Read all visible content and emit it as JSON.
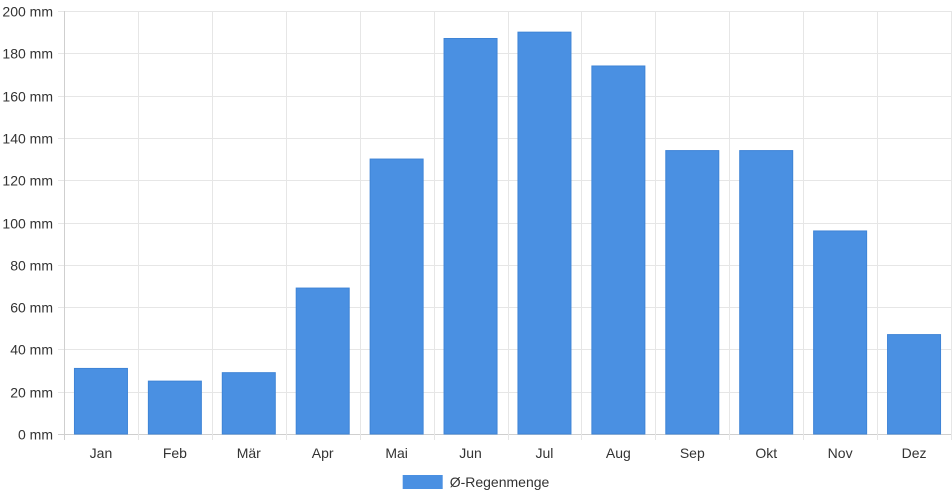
{
  "chart_data": {
    "type": "bar",
    "categories": [
      "Jan",
      "Feb",
      "Mär",
      "Apr",
      "Mai",
      "Jun",
      "Jul",
      "Aug",
      "Sep",
      "Okt",
      "Nov",
      "Dez"
    ],
    "series": [
      {
        "name": "Ø-Regenmenge",
        "values": [
          31,
          25,
          29,
          69,
          130,
          187,
          190,
          174,
          134,
          134,
          96,
          47
        ],
        "color": "#4a90e2"
      }
    ],
    "y_ticks": [
      "0 mm",
      "20 mm",
      "40 mm",
      "60 mm",
      "80 mm",
      "100 mm",
      "120 mm",
      "140 mm",
      "160 mm",
      "180 mm",
      "200 mm"
    ],
    "ylim": [
      0,
      200
    ],
    "grid": true,
    "legend_position": "bottom"
  }
}
